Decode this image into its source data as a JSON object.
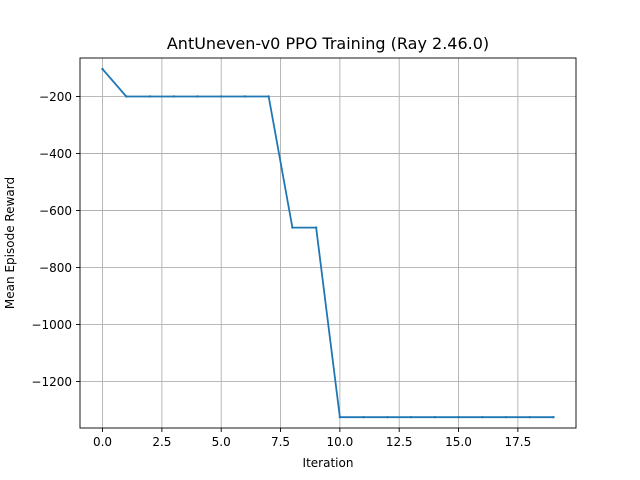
{
  "chart_data": {
    "type": "line",
    "title": "AntUneven-v0 PPO Training (Ray 2.46.0)",
    "xlabel": "Iteration",
    "ylabel": "Mean Episode Reward",
    "xlim": [
      -0.95,
      19.95
    ],
    "ylim": [
      -1363,
      -65
    ],
    "xticks": [
      0,
      2.5,
      5,
      7.5,
      10,
      12.5,
      15,
      17.5
    ],
    "xtick_labels": [
      "0.0",
      "2.5",
      "5.0",
      "7.5",
      "10.0",
      "12.5",
      "15.0",
      "17.5"
    ],
    "yticks": [
      -1200,
      -1000,
      -800,
      -600,
      -400,
      -200
    ],
    "ytick_labels": [
      "−1200",
      "−1000",
      "−800",
      "−600",
      "−400",
      "−200"
    ],
    "grid": true,
    "series": [
      {
        "color": "#1f77b4",
        "x": [
          0,
          1,
          2,
          3,
          4,
          5,
          6,
          7,
          8,
          9,
          10,
          11,
          12,
          13,
          14,
          15,
          16,
          17,
          18,
          19
        ],
        "y": [
          -104,
          -200,
          -200,
          -200,
          -200,
          -200,
          -200,
          -200,
          -660,
          -660,
          -1325,
          -1325,
          -1325,
          -1325,
          -1325,
          -1325,
          -1325,
          -1325,
          -1325,
          -1325
        ]
      }
    ]
  }
}
